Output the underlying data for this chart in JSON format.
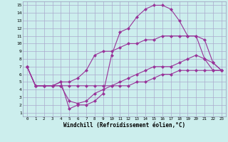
{
  "background_color": "#cceeed",
  "grid_color": "#aaaacc",
  "line_color": "#993399",
  "line_width": 0.8,
  "marker": "D",
  "marker_size": 2.0,
  "xlim": [
    -0.5,
    23.5
  ],
  "ylim": [
    0.5,
    15.5
  ],
  "xticks": [
    0,
    1,
    2,
    3,
    4,
    5,
    6,
    7,
    8,
    9,
    10,
    11,
    12,
    13,
    14,
    15,
    16,
    17,
    18,
    19,
    20,
    21,
    22,
    23
  ],
  "yticks": [
    1,
    2,
    3,
    4,
    5,
    6,
    7,
    8,
    9,
    10,
    11,
    12,
    13,
    14,
    15
  ],
  "xlabel": "Windchill (Refroidissement éolien,°C)",
  "lines": [
    {
      "x": [
        0,
        1,
        2,
        3,
        4,
        5,
        6,
        7,
        8,
        9,
        10,
        11,
        12,
        13,
        14,
        15,
        16,
        17,
        18,
        19,
        20,
        21,
        22,
        23
      ],
      "y": [
        7,
        4.5,
        4.5,
        4.5,
        4.5,
        4.5,
        4.5,
        4.5,
        4.5,
        4.5,
        4.5,
        4.5,
        4.5,
        5,
        5,
        5.5,
        6,
        6,
        6.5,
        6.5,
        6.5,
        6.5,
        6.5,
        6.5
      ]
    },
    {
      "x": [
        0,
        1,
        2,
        3,
        4,
        5,
        6,
        7,
        8,
        9,
        10,
        11,
        12,
        13,
        14,
        15,
        16,
        17,
        18,
        19,
        20,
        21,
        22,
        23
      ],
      "y": [
        7,
        4.5,
        4.5,
        4.5,
        5,
        1.5,
        2,
        2,
        2.5,
        3.5,
        8.5,
        11.5,
        12,
        13.5,
        14.5,
        15,
        15,
        14.5,
        13,
        11,
        11,
        8,
        7.5,
        6.5
      ]
    },
    {
      "x": [
        0,
        1,
        2,
        3,
        4,
        5,
        6,
        7,
        8,
        9,
        10,
        11,
        12,
        13,
        14,
        15,
        16,
        17,
        18,
        19,
        20,
        21,
        22,
        23
      ],
      "y": [
        7,
        4.5,
        4.5,
        4.5,
        5,
        5,
        5.5,
        6.5,
        8.5,
        9,
        9,
        9.5,
        10,
        10,
        10.5,
        10.5,
        11,
        11,
        11,
        11,
        11,
        10.5,
        7.5,
        6.5
      ]
    },
    {
      "x": [
        0,
        1,
        2,
        3,
        4,
        5,
        6,
        7,
        8,
        9,
        10,
        11,
        12,
        13,
        14,
        15,
        16,
        17,
        18,
        19,
        20,
        21,
        22,
        23
      ],
      "y": [
        7,
        4.5,
        4.5,
        4.5,
        4.5,
        2.5,
        2.2,
        2.5,
        3.5,
        4,
        4.5,
        5,
        5.5,
        6,
        6.5,
        7,
        7,
        7,
        7.5,
        8,
        8.5,
        8,
        6.5,
        6.5
      ]
    }
  ]
}
